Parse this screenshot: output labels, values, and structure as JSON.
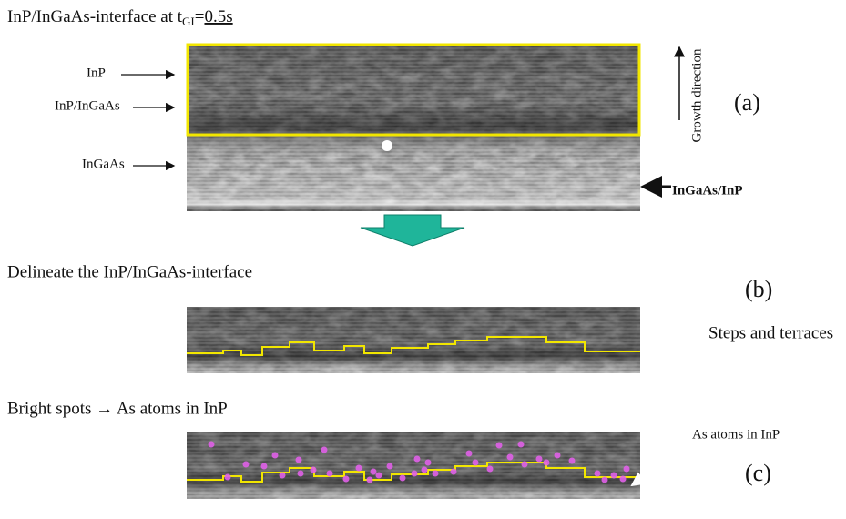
{
  "header": {
    "title": "InP/InGaAs-interface at t",
    "title_subscript": "GI",
    "title_equals": "=",
    "title_value": "0.5s"
  },
  "panel_a": {
    "labels": [
      "InP",
      "InP/InGaAs",
      "InGaAs"
    ],
    "direction": "Growth direction",
    "bottom_label": "InGaAs/InP",
    "tag": "(a)"
  },
  "panel_b": {
    "caption": "Delineate the InP/InGaAs-interface",
    "note": "Steps and terraces",
    "tag": "(b)"
  },
  "panel_c": {
    "caption": "Bright spots → As atoms in InP",
    "note": "As atoms in InP",
    "tag": "(c)"
  }
}
